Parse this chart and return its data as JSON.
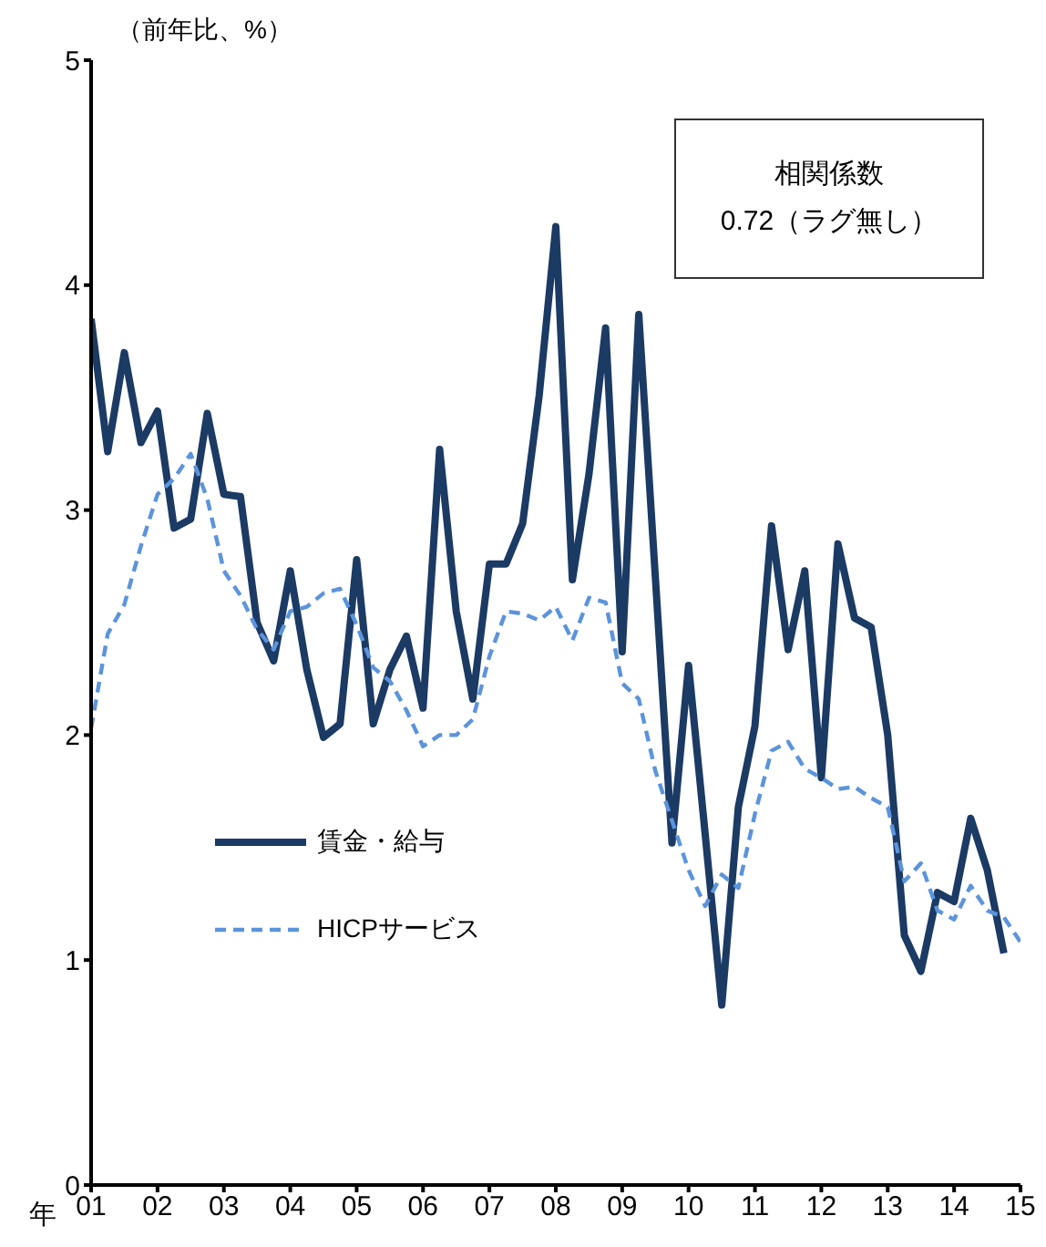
{
  "chart_data": {
    "type": "line",
    "ylabel": "（前年比、%）",
    "xlabel": "年",
    "annotations": [
      "相関係数",
      "0.72（ラグ無し）"
    ],
    "x": [
      2001,
      2001.25,
      2001.5,
      2001.75,
      2002,
      2002.25,
      2002.5,
      2002.75,
      2003,
      2003.25,
      2003.5,
      2003.75,
      2004,
      2004.25,
      2004.5,
      2004.75,
      2005,
      2005.25,
      2005.5,
      2005.75,
      2006,
      2006.25,
      2006.5,
      2006.75,
      2007,
      2007.25,
      2007.5,
      2007.75,
      2008,
      2008.25,
      2008.5,
      2008.75,
      2009,
      2009.25,
      2009.5,
      2009.75,
      2010,
      2010.25,
      2010.5,
      2010.75,
      2011,
      2011.25,
      2011.5,
      2011.75,
      2012,
      2012.25,
      2012.5,
      2012.75,
      2013,
      2013.25,
      2013.5,
      2013.75,
      2014,
      2014.25,
      2014.5,
      2014.75,
      2015
    ],
    "series": [
      {
        "name": "賃金・給与",
        "color": "#1b3a64",
        "line_style": "solid",
        "values": [
          3.85,
          3.26,
          3.7,
          3.3,
          3.44,
          2.92,
          2.96,
          3.43,
          3.07,
          3.06,
          2.5,
          2.33,
          2.73,
          2.29,
          1.99,
          2.05,
          2.78,
          2.05,
          2.29,
          2.44,
          2.12,
          3.27,
          2.55,
          2.16,
          2.76,
          2.76,
          2.94,
          3.51,
          4.26,
          2.69,
          3.16,
          3.81,
          2.37,
          3.87,
          2.7,
          1.52,
          2.31,
          1.56,
          0.8,
          1.68,
          2.04,
          2.93,
          2.38,
          2.73,
          1.81,
          2.85,
          2.52,
          2.48,
          2.0,
          1.11,
          0.95,
          1.3,
          1.26,
          1.63,
          1.4,
          1.03,
          null
        ]
      },
      {
        "name": "HICPサービス",
        "color": "#5b94dc",
        "line_style": "dashed",
        "values": [
          2.03,
          2.45,
          2.58,
          2.84,
          3.07,
          3.14,
          3.25,
          3.05,
          2.73,
          2.62,
          2.47,
          2.38,
          2.55,
          2.57,
          2.63,
          2.65,
          2.49,
          2.3,
          2.24,
          2.11,
          1.95,
          2.0,
          2.0,
          2.07,
          2.35,
          2.55,
          2.54,
          2.51,
          2.57,
          2.42,
          2.61,
          2.59,
          2.23,
          2.16,
          1.84,
          1.62,
          1.4,
          1.24,
          1.38,
          1.32,
          1.65,
          1.93,
          1.97,
          1.85,
          1.81,
          1.76,
          1.77,
          1.72,
          1.68,
          1.35,
          1.43,
          1.22,
          1.18,
          1.33,
          1.22,
          1.19,
          1.08
        ]
      }
    ],
    "xlim": [
      2001,
      2015
    ],
    "xticks": [
      {
        "value": 2001,
        "label": "01"
      },
      {
        "value": 2002,
        "label": "02"
      },
      {
        "value": 2003,
        "label": "03"
      },
      {
        "value": 2004,
        "label": "04"
      },
      {
        "value": 2005,
        "label": "05"
      },
      {
        "value": 2006,
        "label": "06"
      },
      {
        "value": 2007,
        "label": "07"
      },
      {
        "value": 2008,
        "label": "08"
      },
      {
        "value": 2009,
        "label": "09"
      },
      {
        "value": 2010,
        "label": "10"
      },
      {
        "value": 2011,
        "label": "11"
      },
      {
        "value": 2012,
        "label": "12"
      },
      {
        "value": 2013,
        "label": "13"
      },
      {
        "value": 2014,
        "label": "14"
      },
      {
        "value": 2015,
        "label": "15"
      }
    ],
    "ylim": [
      0,
      5
    ],
    "yticks": [
      0,
      1,
      2,
      3,
      4,
      5
    ],
    "grid": false,
    "legend": "bottom left",
    "marker": "none"
  }
}
